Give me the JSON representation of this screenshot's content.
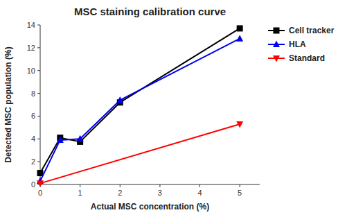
{
  "chart_data": {
    "type": "line",
    "title": "MSC staining calibration curve",
    "x_label": "Actual MSC concentration (%)",
    "y_label": "Detected MSC population (%)",
    "xlim": [
      0,
      5.5
    ],
    "ylim": [
      0,
      14
    ],
    "xticks": [
      0,
      1,
      2,
      3,
      4,
      5
    ],
    "yticks": [
      0,
      2,
      4,
      6,
      8,
      10,
      12,
      14
    ],
    "grid": false,
    "legend": "right",
    "series": [
      {
        "name": "Cell tracker",
        "color": "#000000",
        "marker": "square",
        "x": [
          0,
          0.5,
          1,
          2,
          5
        ],
        "values": [
          1.0,
          4.1,
          3.75,
          7.2,
          13.7
        ]
      },
      {
        "name": "HLA",
        "color": "#0000ee",
        "marker": "triangle-up",
        "x": [
          0,
          0.5,
          1,
          2,
          5
        ],
        "values": [
          0.3,
          3.9,
          4.0,
          7.4,
          12.8
        ]
      },
      {
        "name": "Standard",
        "color": "#ff0000",
        "marker": "triangle-down",
        "x": [
          0,
          5
        ],
        "values": [
          0.1,
          5.3
        ]
      }
    ]
  }
}
